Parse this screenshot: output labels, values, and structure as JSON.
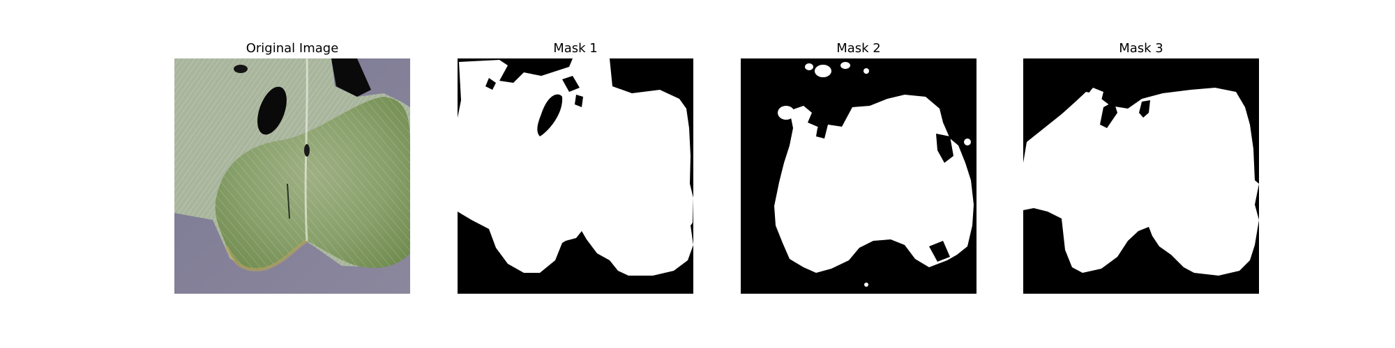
{
  "figure": {
    "panels": [
      {
        "title": "Original Image"
      },
      {
        "title": "Mask 1"
      },
      {
        "title": "Mask 2"
      },
      {
        "title": "Mask 3"
      }
    ]
  },
  "colors": {
    "mask_background": "#000000",
    "mask_foreground": "#ffffff",
    "leaf_surface": "#8c9a88",
    "leaf_green": "#6f8a4e",
    "table_surface": "#7d7a92",
    "hole_shadow": "#0a0a0a"
  }
}
